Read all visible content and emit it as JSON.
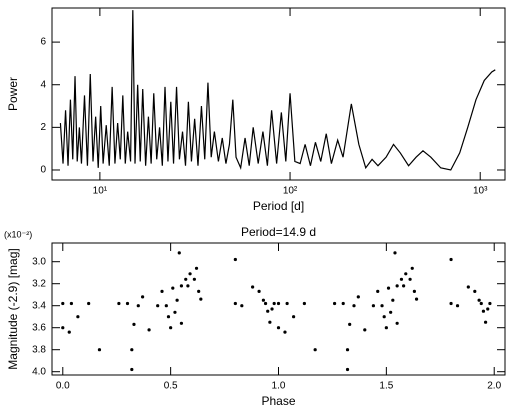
{
  "chart_data": [
    {
      "type": "line",
      "xscale": "log",
      "x_label": "Period [d]",
      "y_label": "Power",
      "color": "#000000",
      "xlim": [
        5.6,
        1350
      ],
      "ylim": [
        -0.47,
        7.6
      ],
      "xticks": [
        {
          "value": 10,
          "label": "10¹"
        },
        {
          "value": 100,
          "label": "10²"
        },
        {
          "value": 1000,
          "label": "10³"
        }
      ],
      "yticks": [
        0,
        2,
        4,
        6
      ],
      "x": [
        6.2,
        6.4,
        6.6,
        6.8,
        7.0,
        7.2,
        7.4,
        7.6,
        7.8,
        8.0,
        8.3,
        8.6,
        8.9,
        9.2,
        9.5,
        9.8,
        10.1,
        10.4,
        10.8,
        11.2,
        11.6,
        12.0,
        12.4,
        12.8,
        13.2,
        13.6,
        14.0,
        14.5,
        14.9,
        15.3,
        15.8,
        16.3,
        16.8,
        17.4,
        18.0,
        18.6,
        19.2,
        19.9,
        20.6,
        21.3,
        22.0,
        22.8,
        23.6,
        24.4,
        25.3,
        26.2,
        27.2,
        28.2,
        29.2,
        30.3,
        31.5,
        32.8,
        34.2,
        35.6,
        37.0,
        38.5,
        40,
        42,
        44,
        46,
        48,
        50,
        52,
        55,
        58,
        61,
        64,
        68,
        72,
        76,
        80,
        85,
        90,
        95,
        100,
        106,
        113,
        120,
        128,
        136,
        145,
        155,
        165,
        178,
        190,
        210,
        230,
        250,
        270,
        290,
        320,
        350,
        380,
        420,
        460,
        500,
        550,
        620,
        700,
        780,
        860,
        950,
        1050,
        1150,
        1200
      ],
      "values": [
        2.2,
        0.3,
        2.8,
        0.2,
        3.3,
        0.5,
        4.4,
        0.4,
        2.0,
        0.3,
        3.5,
        0.2,
        4.5,
        0.4,
        2.5,
        0.1,
        3.0,
        0.3,
        2.1,
        0.2,
        3.9,
        0.3,
        2.2,
        0.5,
        3.5,
        0.3,
        1.8,
        0.4,
        7.5,
        0.3,
        4.0,
        0.4,
        3.8,
        0.2,
        2.5,
        0.3,
        3.6,
        0.5,
        2.0,
        0.2,
        3.9,
        0.4,
        3.2,
        0.3,
        3.9,
        0.5,
        1.8,
        0.2,
        3.2,
        0.4,
        2.4,
        0.2,
        3.0,
        0.5,
        4.1,
        0.6,
        1.8,
        0.4,
        1.5,
        0.3,
        1.2,
        3.3,
        0.6,
        0.1,
        1.5,
        0.2,
        2.0,
        0.3,
        1.8,
        0.2,
        2.8,
        0.3,
        2.7,
        0.4,
        3.6,
        0.4,
        0.3,
        1.2,
        0.2,
        1.3,
        0.4,
        1.7,
        0.3,
        1.4,
        0.6,
        3.1,
        1.2,
        0.1,
        0.5,
        0.2,
        0.6,
        1.2,
        0.8,
        0.2,
        0.6,
        0.9,
        0.6,
        0.1,
        0.0,
        0.8,
        2.0,
        3.3,
        4.2,
        4.6,
        4.7
      ]
    },
    {
      "type": "scatter",
      "title": "Period=14.9 d",
      "x_label": "Phase",
      "y_label": "Magnitude (-2.9) [mag]",
      "y_multiplier": "(x10⁻²)",
      "color": "#000000",
      "xlim": [
        -0.05,
        2.05
      ],
      "ylim": [
        4.03,
        2.83
      ],
      "xticks": [
        {
          "value": 0,
          "label": "0.0"
        },
        0.5,
        {
          "value": 1,
          "label": "1.0"
        },
        1.5,
        {
          "value": 2,
          "label": "2.0"
        }
      ],
      "yticks": [
        {
          "value": 3,
          "label": "3.0"
        },
        3.2,
        3.4,
        3.6,
        3.8,
        {
          "value": 4,
          "label": "4.0"
        }
      ],
      "x": [
        0.0,
        0.0,
        0.03,
        0.04,
        0.07,
        0.12,
        0.17,
        0.26,
        0.3,
        0.32,
        0.32,
        0.33,
        0.35,
        0.37,
        0.4,
        0.44,
        0.46,
        0.48,
        0.49,
        0.5,
        0.51,
        0.52,
        0.53,
        0.54,
        0.55,
        0.55,
        0.57,
        0.58,
        0.59,
        0.61,
        0.62,
        0.63,
        0.64,
        0.8,
        0.8,
        0.83,
        0.88,
        0.91,
        0.93,
        0.94,
        0.95,
        0.96,
        0.97,
        0.98,
        1.0,
        1.0,
        1.03,
        1.04,
        1.07,
        1.12,
        1.17,
        1.26,
        1.3,
        1.32,
        1.32,
        1.33,
        1.35,
        1.37,
        1.4,
        1.44,
        1.46,
        1.48,
        1.49,
        1.5,
        1.51,
        1.52,
        1.53,
        1.54,
        1.55,
        1.55,
        1.57,
        1.58,
        1.59,
        1.61,
        1.62,
        1.63,
        1.64,
        1.8,
        1.8,
        1.83,
        1.88,
        1.91,
        1.93,
        1.94,
        1.95,
        1.96,
        1.97,
        1.98
      ],
      "values": [
        3.6,
        3.38,
        3.64,
        3.38,
        3.5,
        3.38,
        3.8,
        3.38,
        3.38,
        3.8,
        3.98,
        3.57,
        3.4,
        3.32,
        3.62,
        3.4,
        3.27,
        3.4,
        3.5,
        3.6,
        3.24,
        3.46,
        3.35,
        2.92,
        3.56,
        3.22,
        3.16,
        3.22,
        3.11,
        3.16,
        3.06,
        3.27,
        3.34,
        2.98,
        3.38,
        3.4,
        3.23,
        3.27,
        3.35,
        3.38,
        3.45,
        3.55,
        3.43,
        3.38,
        3.6,
        3.38,
        3.64,
        3.38,
        3.5,
        3.38,
        3.8,
        3.38,
        3.38,
        3.8,
        3.98,
        3.57,
        3.4,
        3.32,
        3.62,
        3.4,
        3.27,
        3.4,
        3.5,
        3.6,
        3.24,
        3.46,
        3.35,
        2.92,
        3.56,
        3.22,
        3.16,
        3.22,
        3.11,
        3.16,
        3.06,
        3.27,
        3.34,
        2.98,
        3.38,
        3.4,
        3.23,
        3.27,
        3.35,
        3.38,
        3.45,
        3.55,
        3.43,
        3.38
      ]
    }
  ]
}
